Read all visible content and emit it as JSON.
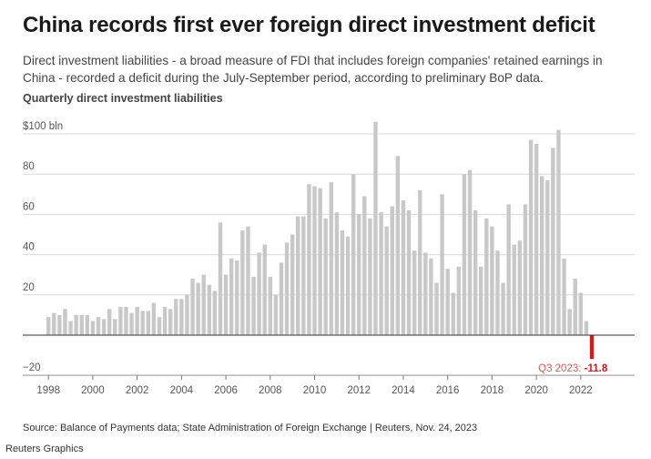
{
  "header": {
    "title": "China records first ever foreign direct investment deficit",
    "subtitle": "Direct investment liabilities - a broad measure of FDI that includes foreign companies' retained earnings in China - recorded a deficit during the July-September period, according to preliminary BoP data."
  },
  "footer": {
    "source": "Source: Balance of Payments data; State Administration of Foreign Exchange | Reuters, Nov. 24, 2023",
    "credit": "Reuters Graphics"
  },
  "colors": {
    "bar": "#c8c8c8",
    "highlight": "#d7191c",
    "annotation_label": "#e0595b",
    "axis": "#333333",
    "grid": "#d9d9d9"
  },
  "chart_data": {
    "type": "bar",
    "title": "Quarterly direct investment liabilities",
    "ylabel": "",
    "xlabel": "",
    "ylim": [
      -20,
      100
    ],
    "y_ticks": [
      -20,
      20,
      40,
      60,
      80,
      100
    ],
    "y_tick_labels": [
      "−20",
      "20",
      "40",
      "60",
      "80",
      "$100 bln"
    ],
    "x_tick_labels": [
      "1998",
      "2000",
      "2002",
      "2004",
      "2006",
      "2008",
      "2010",
      "2012",
      "2014",
      "2016",
      "2018",
      "2020",
      "2022"
    ],
    "grid": true,
    "series": [
      {
        "start_year": 1998,
        "frequency": "quarterly",
        "values": [
          9,
          11,
          10,
          13,
          7,
          10,
          10,
          10,
          7,
          9,
          8,
          13,
          8,
          14,
          14,
          11,
          14,
          12,
          12,
          16,
          9,
          14,
          13,
          18,
          18,
          20,
          28,
          26,
          30,
          25,
          22,
          56,
          30,
          38,
          37,
          52,
          54,
          29,
          41,
          45,
          29,
          20,
          36,
          46,
          50,
          59,
          59,
          75,
          74,
          73,
          58,
          76,
          61,
          52,
          49,
          80,
          60,
          69,
          58,
          106,
          61,
          54,
          64,
          89,
          67,
          62,
          42,
          72,
          41,
          38,
          26,
          70,
          33,
          21,
          34,
          80,
          82,
          62,
          34,
          58,
          54,
          42,
          26,
          65,
          45,
          47,
          65,
          97,
          95,
          79,
          77,
          93,
          102,
          38,
          13,
          28,
          21,
          7,
          -11.8
        ]
      }
    ],
    "annotations": [
      {
        "label": "Q3 2023: ",
        "value": "-11.8"
      }
    ]
  }
}
